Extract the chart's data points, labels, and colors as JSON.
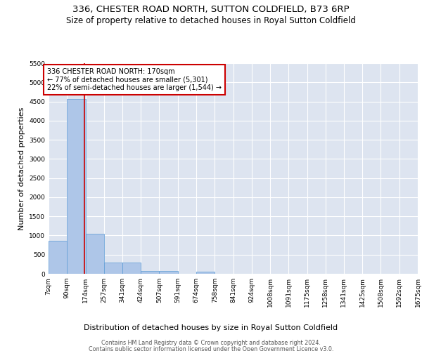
{
  "title": "336, CHESTER ROAD NORTH, SUTTON COLDFIELD, B73 6RP",
  "subtitle": "Size of property relative to detached houses in Royal Sutton Coldfield",
  "xlabel": "Distribution of detached houses by size in Royal Sutton Coldfield",
  "ylabel": "Number of detached properties",
  "footer_line1": "Contains HM Land Registry data © Crown copyright and database right 2024.",
  "footer_line2": "Contains public sector information licensed under the Open Government Licence v3.0.",
  "bin_edges": [
    7,
    90,
    174,
    257,
    341,
    424,
    507,
    591,
    674,
    758,
    841,
    924,
    1008,
    1091,
    1175,
    1258,
    1341,
    1425,
    1508,
    1592,
    1675
  ],
  "bar_heights": [
    870,
    4560,
    1050,
    300,
    300,
    80,
    80,
    0,
    50,
    0,
    0,
    0,
    0,
    0,
    0,
    0,
    0,
    0,
    0,
    0
  ],
  "bar_color": "#aec6e8",
  "bar_edge_color": "#5b9bd5",
  "property_size": 170,
  "property_line_color": "#cc0000",
  "annotation_line1": "336 CHESTER ROAD NORTH: 170sqm",
  "annotation_line2": "← 77% of detached houses are smaller (5,301)",
  "annotation_line3": "22% of semi-detached houses are larger (1,544) →",
  "annotation_box_color": "#cc0000",
  "ylim": [
    0,
    5500
  ],
  "yticks": [
    0,
    500,
    1000,
    1500,
    2000,
    2500,
    3000,
    3500,
    4000,
    4500,
    5000,
    5500
  ],
  "background_color": "#dde4f0",
  "grid_color": "#ffffff",
  "title_fontsize": 9.5,
  "subtitle_fontsize": 8.5,
  "ylabel_fontsize": 8,
  "xlabel_fontsize": 8,
  "tick_fontsize": 6.5,
  "annotation_fontsize": 7,
  "footer_fontsize": 5.8
}
